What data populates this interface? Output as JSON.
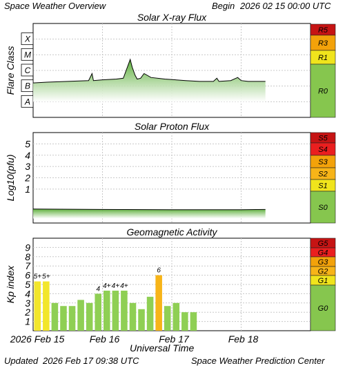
{
  "header": {
    "title": "Space Weather Overview",
    "begin_label": "Begin",
    "begin_value": "2026 02 15 00:00 UTC"
  },
  "footer": {
    "updated_label": "Updated",
    "updated_value": "2026 Feb 17 09:38 UTC",
    "credit": "Space Weather Prediction Center",
    "xaxis_title": "Universal Time"
  },
  "colors": {
    "grid": "#c8c8c8",
    "green": "#86c64e",
    "yellow": "#f0e41c",
    "orange": "#f3a20a",
    "red_orange": "#f46714",
    "red": "#ea1f1f",
    "dark_red": "#c61414",
    "kp_green": "#8fcf54",
    "kp_yellow": "#f2e62c",
    "kp_orange": "#f7b418"
  },
  "chart_data": [
    {
      "type": "line",
      "title": "Solar X-ray Flux",
      "ylabel": "Flare Class",
      "y_tick_labels": [
        "A",
        "B",
        "C",
        "M",
        "X"
      ],
      "ylim": [
        0,
        6
      ],
      "xlim_days": [
        0,
        4
      ],
      "x_tick_labels": [
        "2026 Feb 15",
        "Feb 16",
        "Feb 17",
        "Feb 18"
      ],
      "scale_labels": [
        "R5",
        "R3",
        "R1",
        "R0"
      ],
      "series_level": [
        [
          0.0,
          2.2
        ],
        [
          0.2,
          2.25
        ],
        [
          0.5,
          2.3
        ],
        [
          0.8,
          2.35
        ],
        [
          0.85,
          2.8
        ],
        [
          0.87,
          2.35
        ],
        [
          1.0,
          2.4
        ],
        [
          1.2,
          2.45
        ],
        [
          1.3,
          2.5
        ],
        [
          1.4,
          3.7
        ],
        [
          1.43,
          3.2
        ],
        [
          1.47,
          2.7
        ],
        [
          1.5,
          2.45
        ],
        [
          1.55,
          2.5
        ],
        [
          1.6,
          2.8
        ],
        [
          1.7,
          2.55
        ],
        [
          1.9,
          2.45
        ],
        [
          2.2,
          2.35
        ],
        [
          2.4,
          2.3
        ],
        [
          2.6,
          2.3
        ],
        [
          2.65,
          2.5
        ],
        [
          2.68,
          2.3
        ],
        [
          2.85,
          2.35
        ],
        [
          2.95,
          2.55
        ],
        [
          3.0,
          2.35
        ],
        [
          3.1,
          2.3
        ],
        [
          3.35,
          2.3
        ]
      ]
    },
    {
      "type": "line",
      "title": "Solar Proton Flux",
      "ylabel": "Log10(pfu)",
      "y_tick_labels": [
        "1",
        "2",
        "3",
        "4",
        "5"
      ],
      "ylim": [
        -2,
        6
      ],
      "xlim_days": [
        0,
        4
      ],
      "scale_labels": [
        "S5",
        "S4",
        "S3",
        "S2",
        "S1",
        "S0"
      ],
      "series_log_pfu": [
        [
          0.0,
          -0.76
        ],
        [
          1.0,
          -0.8
        ],
        [
          2.0,
          -0.82
        ],
        [
          3.0,
          -0.82
        ],
        [
          3.35,
          -0.8
        ]
      ]
    },
    {
      "type": "bar",
      "title": "Geomagnetic Activity",
      "ylabel": "Kp index",
      "y_tick_labels": [
        "1",
        "2",
        "3",
        "4",
        "5",
        "6",
        "7",
        "8",
        "9"
      ],
      "ylim": [
        0,
        10
      ],
      "xlim_days": [
        0,
        4
      ],
      "scale_labels": [
        "G5",
        "G4",
        "G3",
        "G2",
        "G1",
        "G0"
      ],
      "values": [
        5.33,
        5.33,
        3,
        2.67,
        2.67,
        3.33,
        3,
        4,
        4.33,
        4.33,
        4.33,
        3,
        2.33,
        3.67,
        6,
        2.67,
        3,
        2,
        2
      ],
      "bar_labels": [
        "5+",
        "5+",
        "",
        "",
        "",
        "",
        "",
        "4",
        "4+",
        "4+",
        "4+",
        "",
        "",
        "",
        "6",
        "",
        "",
        "",
        ""
      ]
    }
  ]
}
